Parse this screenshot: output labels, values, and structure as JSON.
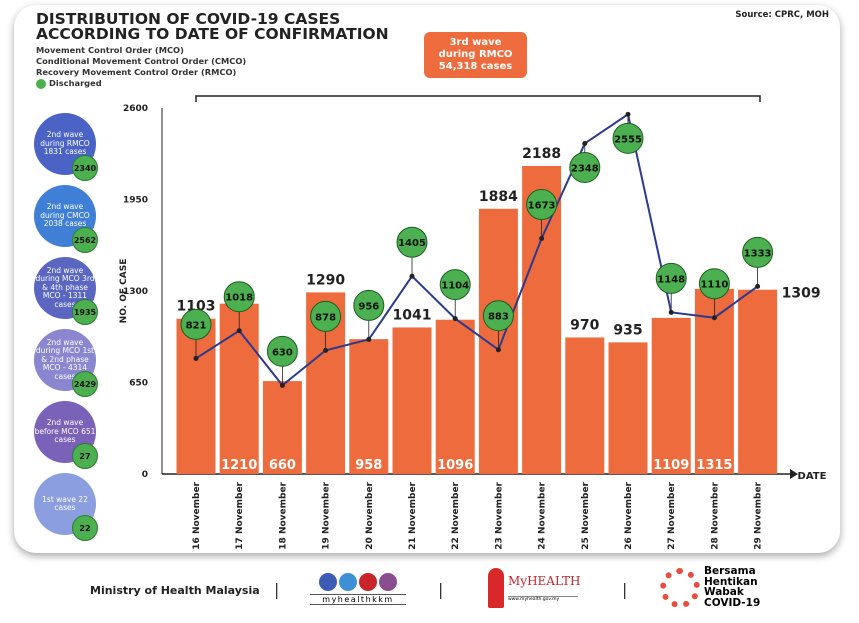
{
  "header": {
    "title_line1": "DISTRIBUTION OF COVID-19 CASES",
    "title_line2": "ACCORDING TO DATE OF CONFIRMATION",
    "legend_mco": "Movement Control Order (MCO)",
    "legend_cmco": "Conditional Movement Control Order (CMCO)",
    "legend_rmco": "Recovery Movement Control Order (RMCO)",
    "legend_discharged": "Discharged",
    "source": "Source: CPRC, MOH"
  },
  "third_wave": {
    "line1": "3rd wave",
    "line2": "during RMCO",
    "line3": "54,318 cases"
  },
  "waves": [
    {
      "label": "2nd wave during RMCO 1831 cases",
      "discharged": "2340",
      "color": "#4a63c4"
    },
    {
      "label": "2nd wave during CMCO 2038 cases",
      "discharged": "2562",
      "color": "#3f7fd6"
    },
    {
      "label": "2nd wave during MCO 3rd & 4th phase MCO - 1311 cases",
      "discharged": "1935",
      "color": "#5a66c0"
    },
    {
      "label": "2nd wave during MCO 1st & 2nd phase MCO - 4314 cases",
      "discharged": "2429",
      "color": "#8a86cf"
    },
    {
      "label": "2nd wave before MCO 651 cases",
      "discharged": "27",
      "color": "#7a62b8"
    },
    {
      "label": "1st wave 22 cases",
      "discharged": "22",
      "color": "#8a9ee0"
    }
  ],
  "chart_data": {
    "type": "bar",
    "title": "DISTRIBUTION OF COVID-19 CASES ACCORDING TO DATE OF CONFIRMATION",
    "xlabel": "DATE",
    "ylabel": "NO. OF CASE",
    "ylim": [
      0,
      2600
    ],
    "yticks": [
      0,
      650,
      1300,
      1950,
      2600
    ],
    "categories": [
      "16 November",
      "17 November",
      "18 November",
      "19 November",
      "20 November",
      "21 November",
      "22 November",
      "23 November",
      "24 November",
      "25 November",
      "26 November",
      "27 November",
      "28 November",
      "29 November"
    ],
    "series": [
      {
        "name": "Cases",
        "type": "bar",
        "color": "#ed6b3c",
        "values": [
          1103,
          1210,
          660,
          1290,
          958,
          1041,
          1096,
          1884,
          2188,
          970,
          935,
          1109,
          1315,
          1309
        ]
      },
      {
        "name": "Discharged",
        "type": "line",
        "color": "#2b3a8f",
        "values": [
          821,
          1018,
          630,
          878,
          956,
          1405,
          1104,
          883,
          1673,
          2348,
          2555,
          1148,
          1110,
          1333
        ]
      }
    ]
  },
  "footer": {
    "ministry": "Ministry of Health Malaysia",
    "social": "myhealthkkm",
    "myhealth": "MyHEALTH",
    "myhealth_url": "www.myhealth.gov.my",
    "campaign": "Bersama Hentikan Wabak COVID-19"
  }
}
